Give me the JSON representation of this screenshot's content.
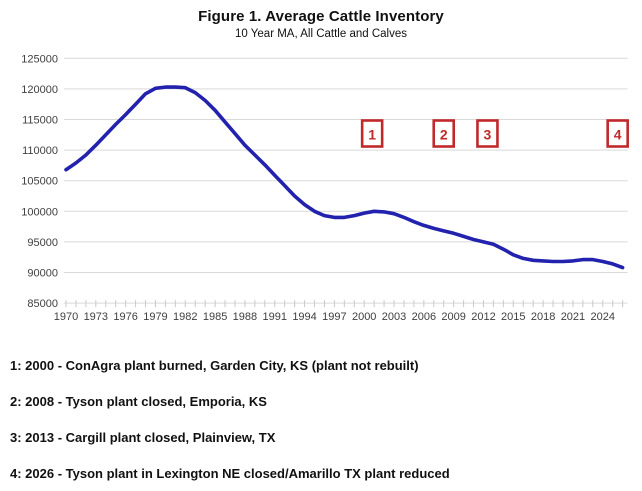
{
  "title": "Figure 1. Average Cattle Inventory",
  "subtitle": "10 Year MA, All Cattle and Calves",
  "chart_data": {
    "type": "line",
    "title": "Figure 1. Average Cattle Inventory",
    "subtitle": "10 Year MA, All Cattle and Calves",
    "xlabel": "",
    "ylabel": "",
    "ylim": [
      85000,
      125000
    ],
    "ytick_step": 5000,
    "ytick_labels": [
      "85000",
      "90000",
      "95000",
      "100000",
      "105000",
      "110000",
      "115000",
      "120000",
      "125000"
    ],
    "x_range": [
      1970,
      2026
    ],
    "x_tick_years": [
      1970,
      1973,
      1976,
      1979,
      1982,
      1985,
      1988,
      1991,
      1994,
      1997,
      2000,
      2003,
      2006,
      2009,
      2012,
      2015,
      2018,
      2021,
      2024
    ],
    "grid": true,
    "grid_color": "#d9d9d9",
    "line_color": "#2222AE",
    "marker_color": "#C0292B",
    "legend_position": "none",
    "series": [
      {
        "name": "10 Year MA, All Cattle and Calves",
        "points": [
          [
            1970,
            106800
          ],
          [
            1971,
            107900
          ],
          [
            1972,
            109200
          ],
          [
            1973,
            110800
          ],
          [
            1974,
            112500
          ],
          [
            1975,
            114200
          ],
          [
            1976,
            115800
          ],
          [
            1977,
            117500
          ],
          [
            1978,
            119200
          ],
          [
            1979,
            120100
          ],
          [
            1980,
            120300
          ],
          [
            1981,
            120300
          ],
          [
            1982,
            120200
          ],
          [
            1983,
            119400
          ],
          [
            1984,
            118100
          ],
          [
            1985,
            116500
          ],
          [
            1986,
            114600
          ],
          [
            1987,
            112700
          ],
          [
            1988,
            110800
          ],
          [
            1989,
            109200
          ],
          [
            1990,
            107600
          ],
          [
            1991,
            105900
          ],
          [
            1992,
            104200
          ],
          [
            1993,
            102500
          ],
          [
            1994,
            101100
          ],
          [
            1995,
            100000
          ],
          [
            1996,
            99300
          ],
          [
            1997,
            99000
          ],
          [
            1998,
            99000
          ],
          [
            1999,
            99300
          ],
          [
            2000,
            99700
          ],
          [
            2001,
            100000
          ],
          [
            2002,
            99900
          ],
          [
            2003,
            99600
          ],
          [
            2004,
            99000
          ],
          [
            2005,
            98300
          ],
          [
            2006,
            97700
          ],
          [
            2007,
            97200
          ],
          [
            2008,
            96800
          ],
          [
            2009,
            96400
          ],
          [
            2010,
            95900
          ],
          [
            2011,
            95400
          ],
          [
            2012,
            95000
          ],
          [
            2013,
            94600
          ],
          [
            2014,
            93800
          ],
          [
            2015,
            92900
          ],
          [
            2016,
            92300
          ],
          [
            2017,
            92000
          ],
          [
            2018,
            91900
          ],
          [
            2019,
            91800
          ],
          [
            2020,
            91800
          ],
          [
            2021,
            91900
          ],
          [
            2022,
            92100
          ],
          [
            2023,
            92100
          ],
          [
            2024,
            91800
          ],
          [
            2025,
            91400
          ],
          [
            2026,
            90800
          ]
        ]
      }
    ],
    "markers": [
      {
        "label": "1",
        "year": 2000,
        "plot_year": 2000.8
      },
      {
        "label": "2",
        "year": 2008,
        "plot_year": 2008.0
      },
      {
        "label": "3",
        "year": 2013,
        "plot_year": 2012.4
      },
      {
        "label": "4",
        "year": 2026,
        "plot_year": 2025.5
      }
    ]
  },
  "footnotes": [
    {
      "text": "1: 2000 - ConAgra plant burned, Garden City, KS (plant not rebuilt)"
    },
    {
      "text": "2: 2008 - Tyson plant closed, Emporia, KS"
    },
    {
      "text": "3: 2013 - Cargill plant closed, Plainview, TX"
    },
    {
      "text": "4: 2026 - Tyson plant in Lexington NE closed/Amarillo TX plant reduced"
    }
  ]
}
